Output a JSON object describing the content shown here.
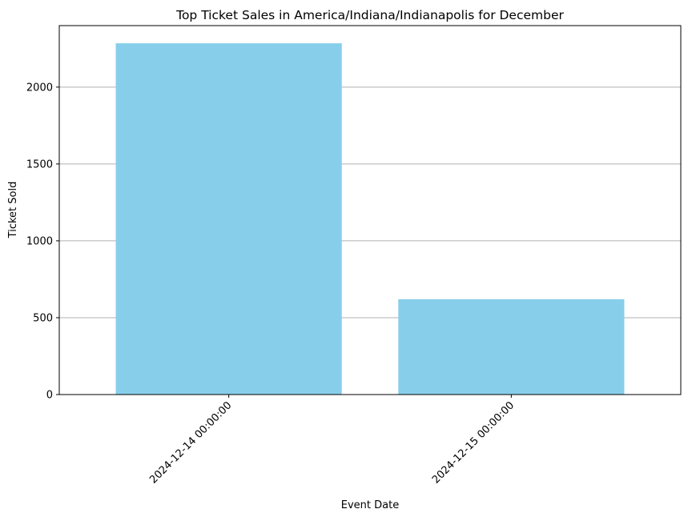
{
  "chart_data": {
    "type": "bar",
    "title": "Top Ticket Sales in America/Indiana/Indianapolis for December",
    "xlabel": "Event Date",
    "ylabel": "Ticket Sold",
    "categories": [
      "2024-12-14 00:00:00",
      "2024-12-15 00:00:00"
    ],
    "values": [
      2285,
      620
    ],
    "ylim": [
      0,
      2400
    ],
    "yticks": [
      0,
      500,
      1000,
      1500,
      2000
    ],
    "grid": "y",
    "bar_color": "#87ceeb",
    "grid_color": "#b0b0b0",
    "x_tick_rotation": 45
  }
}
